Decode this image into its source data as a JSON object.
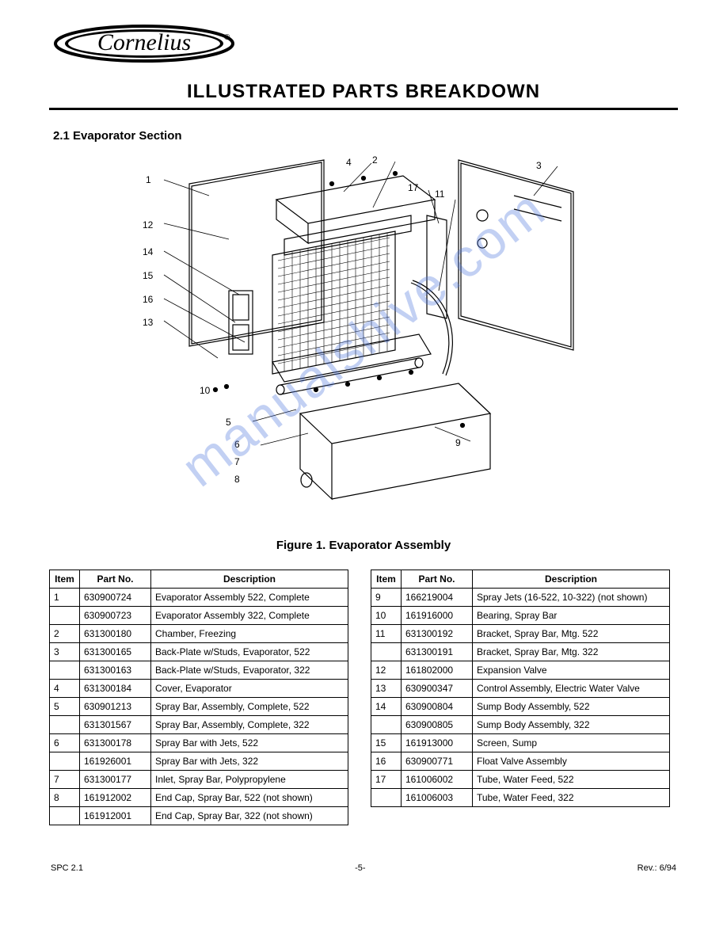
{
  "logo_text": "Cornelius",
  "section_title": "ILLUSTRATED PARTS BREAKDOWN",
  "figure_title": "2.1 Evaporator Section",
  "figure_caption": "Figure 1. Evaporator Assembly",
  "watermark_text": "manualshive.com",
  "callouts": {
    "c1": "1",
    "c2": "2",
    "c3": "3",
    "c4": "4",
    "c12": "12",
    "c14": "14",
    "c15": "15",
    "c16": "16",
    "c17": "17",
    "c5": "5",
    "c6": "6",
    "c7": "7",
    "c8": "8",
    "c9": "9",
    "c10": "10",
    "c11": "11",
    "c13": "13"
  },
  "tableA": {
    "headers": [
      "Item",
      "Part No.",
      "Description"
    ],
    "rows": [
      [
        "1",
        "630900724",
        "Evaporator Assembly 522, Complete"
      ],
      [
        "",
        "630900723",
        "Evaporator Assembly 322, Complete"
      ],
      [
        "2",
        "631300180",
        "Chamber, Freezing"
      ],
      [
        "3",
        "631300165",
        "Back-Plate w/Studs, Evaporator, 522"
      ],
      [
        "",
        "631300163",
        "Back-Plate w/Studs, Evaporator, 322"
      ],
      [
        "4",
        "631300184",
        "Cover, Evaporator"
      ],
      [
        "5",
        "630901213",
        "Spray Bar, Assembly, Complete, 522"
      ],
      [
        "",
        "631301567",
        "Spray Bar, Assembly, Complete, 322"
      ],
      [
        "6",
        "631300178",
        "Spray Bar with Jets, 522"
      ],
      [
        "",
        "161926001",
        "Spray Bar with Jets, 322"
      ],
      [
        "7",
        "631300177",
        "Inlet, Spray Bar, Polypropylene"
      ],
      [
        "8",
        "161912002",
        "End Cap, Spray Bar, 522 (not shown)"
      ],
      [
        "",
        "161912001",
        "End Cap, Spray Bar, 322 (not shown)"
      ]
    ]
  },
  "tableB": {
    "headers": [
      "Item",
      "Part No.",
      "Description"
    ],
    "rows": [
      [
        "9",
        "166219004",
        "Spray Jets (16-522, 10-322) (not shown)"
      ],
      [
        "10",
        "161916000",
        "Bearing, Spray Bar"
      ],
      [
        "11",
        "631300192",
        "Bracket, Spray Bar, Mtg. 522"
      ],
      [
        "",
        "631300191",
        "Bracket, Spray Bar, Mtg. 322"
      ],
      [
        "12",
        "161802000",
        "Expansion Valve"
      ],
      [
        "13",
        "630900347",
        "Control Assembly, Electric Water Valve"
      ],
      [
        "14",
        "630900804",
        "Sump Body Assembly, 522"
      ],
      [
        "",
        "630900805",
        "Sump Body Assembly, 322"
      ],
      [
        "15",
        "161913000",
        "Screen, Sump"
      ],
      [
        "16",
        "630900771",
        "Float Valve Assembly"
      ],
      [
        "17",
        "161006002",
        "Tube, Water Feed, 522"
      ],
      [
        "",
        "161006003",
        "Tube, Water Feed, 322"
      ]
    ]
  },
  "footer": {
    "left": "SPC 2.1",
    "center": "-5-",
    "right": "Rev.: 6/94"
  }
}
